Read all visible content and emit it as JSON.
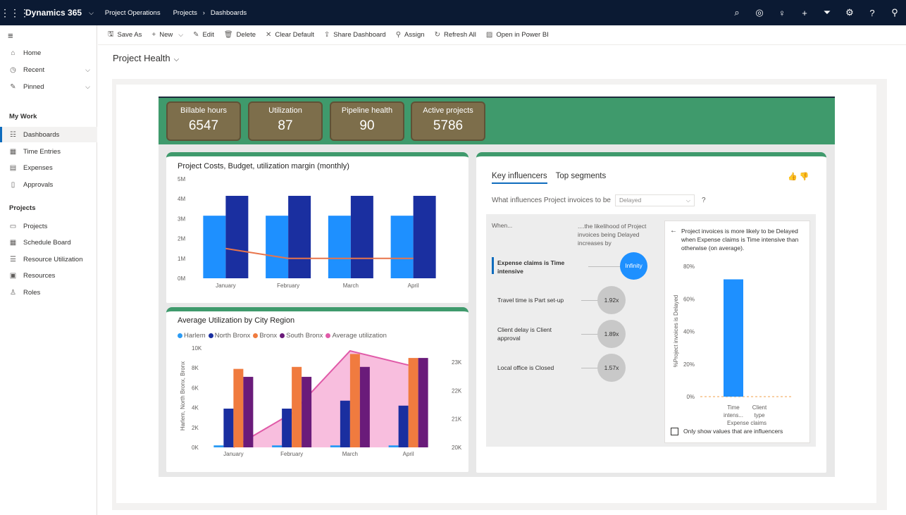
{
  "topbar": {
    "app_name": "Dynamics 365",
    "area": "Project Operations",
    "breadcrumb": [
      "Projects",
      "Dashboards"
    ]
  },
  "sidebar": {
    "nav": [
      {
        "label": "Home",
        "icon": "home-icon"
      },
      {
        "label": "Recent",
        "icon": "clock-icon"
      },
      {
        "label": "Pinned",
        "icon": "pin-icon"
      }
    ],
    "my_work_header": "My Work",
    "my_work": [
      {
        "label": "Dashboards",
        "icon": "dashboard-icon",
        "active": true
      },
      {
        "label": "Time Entries",
        "icon": "calendar-icon"
      },
      {
        "label": "Expenses",
        "icon": "receipt-icon"
      },
      {
        "label": "Approvals",
        "icon": "document-icon"
      }
    ],
    "projects_header": "Projects",
    "projects": [
      {
        "label": "Projects",
        "icon": "project-icon"
      },
      {
        "label": "Schedule Board",
        "icon": "calendar-icon"
      },
      {
        "label": "Resource Utilization",
        "icon": "list-icon"
      },
      {
        "label": "Resources",
        "icon": "resource-icon"
      },
      {
        "label": "Roles",
        "icon": "role-icon"
      }
    ]
  },
  "commands": [
    "Save As",
    "New",
    "Edit",
    "Delete",
    "Clear Default",
    "Share Dashboard",
    "Assign",
    "Refresh All",
    "Open in Power BI"
  ],
  "page_title": "Project Health",
  "kpis": [
    {
      "label": "Billable hours",
      "value": "6547"
    },
    {
      "label": "Utilization",
      "value": "87"
    },
    {
      "label": "Pipeline health",
      "value": "90"
    },
    {
      "label": "Active projects",
      "value": "5786"
    }
  ],
  "chart_data": [
    {
      "type": "bar",
      "title": "Project Costs, Budget, utilization margin (monthly)",
      "categories": [
        "January",
        "February",
        "March",
        "April"
      ],
      "y_ticks": [
        "0M",
        "1M",
        "2M",
        "3M",
        "4M",
        "5M"
      ],
      "ylim": [
        0,
        5000000
      ],
      "series": [
        {
          "kind": "bar",
          "color": "#1e90ff",
          "values": [
            3150000,
            3150000,
            3150000,
            3150000
          ]
        },
        {
          "kind": "bar",
          "color": "#1a2fa0",
          "values": [
            4150000,
            4150000,
            4150000,
            4150000
          ]
        },
        {
          "kind": "line",
          "color": "#e8744a",
          "values": [
            1500000,
            1000000,
            1000000,
            1000000
          ]
        }
      ]
    },
    {
      "type": "bar",
      "title": "Average Utilization by City Region",
      "ylabel": "Harlem, North Bronx, Bronx",
      "categories": [
        "January",
        "February",
        "March",
        "April"
      ],
      "y_ticks": [
        "0K",
        "2K",
        "4K",
        "6K",
        "8K",
        "10K"
      ],
      "ylim": [
        0,
        10000
      ],
      "y2_ticks": [
        "20K",
        "21K",
        "22K",
        "23K"
      ],
      "y2lim": [
        20000,
        23500
      ],
      "legend": [
        "Harlem",
        "North Bronx",
        "Bronx",
        "South Bronx",
        "Average utilization"
      ],
      "series": [
        {
          "name": "Harlem",
          "color": "#2b9bf4",
          "values": [
            200,
            200,
            200,
            200
          ]
        },
        {
          "name": "North Bronx",
          "color": "#1a2fa0",
          "values": [
            3900,
            3900,
            4700,
            4200
          ]
        },
        {
          "name": "Bronx",
          "color": "#f07b3f",
          "values": [
            7900,
            8100,
            9400,
            9000
          ]
        },
        {
          "name": "South Bronx",
          "color": "#6a1b7a",
          "values": [
            7100,
            7100,
            8100,
            9000
          ]
        },
        {
          "name": "Average utilization",
          "color": "#e05aa8",
          "kind": "area",
          "values": [
            20000,
            21200,
            23400,
            22900
          ]
        }
      ]
    },
    {
      "type": "bar",
      "ylabel": "%Project invoices is Delayed",
      "xlabel": "Expense claims",
      "categories": [
        "Time intens...",
        "Client type"
      ],
      "y_ticks": [
        "0%",
        "20%",
        "40%",
        "60%",
        "80%"
      ],
      "ylim": [
        0,
        80
      ],
      "values": [
        72,
        0
      ],
      "color": "#1e90ff"
    }
  ],
  "key_influencers": {
    "tabs": [
      "Key influencers",
      "Top segments"
    ],
    "question": "What influences Project invoices to be",
    "select_value": "Delayed",
    "help": "?",
    "when": "When...",
    "likelihood": "....the likelihood of Project invoices being Delayed increases by",
    "rows": [
      {
        "label": "Expense claims is Time intensive",
        "value": "Infinity",
        "selected": true
      },
      {
        "label": "Travel time is Part set-up",
        "value": "1.92x"
      },
      {
        "label": "Client delay is Client approval",
        "value": "1.89x"
      },
      {
        "label": "Local office is Closed",
        "value": "1.57x"
      }
    ],
    "detail_text": "Project invoices is more likely to be Delayed when Expense claims is Time intensive than otherwise (on average).",
    "checkbox_label": "Only show values that are influencers"
  }
}
